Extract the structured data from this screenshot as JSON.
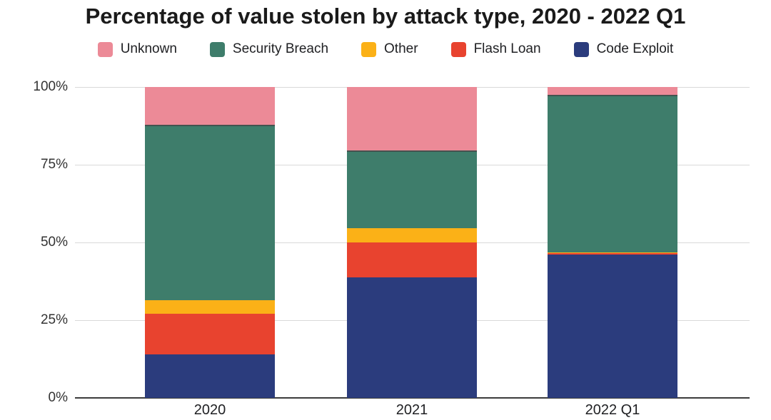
{
  "chart_data": {
    "type": "bar",
    "stacked": true,
    "title": "Percentage of value stolen by attack type, 2020 - 2022 Q1",
    "categories": [
      "2020",
      "2021",
      "2022 Q1"
    ],
    "series": [
      {
        "name": "Unknown",
        "color": "#EC8A97",
        "values": [
          12.2,
          20.5,
          2.5
        ]
      },
      {
        "name": "Security Breach",
        "color": "#3E7D6B",
        "values": [
          56.4,
          25.0,
          50.7
        ]
      },
      {
        "name": "Other",
        "color": "#FBB117",
        "values": [
          4.3,
          4.5,
          0.2
        ]
      },
      {
        "name": "Flash Loan",
        "color": "#E8432F",
        "values": [
          13.2,
          11.3,
          0.6
        ]
      },
      {
        "name": "Code Exploit",
        "color": "#2B3C7D",
        "values": [
          13.9,
          38.7,
          46.0
        ]
      }
    ],
    "y_ticks": [
      0,
      25,
      50,
      75,
      100
    ],
    "y_tick_labels": [
      "0%",
      "25%",
      "50%",
      "75%",
      "100%"
    ],
    "ylim": [
      0,
      100
    ],
    "grid": true,
    "legend_position": "top",
    "legend_order": [
      "Unknown",
      "Security Breach",
      "Other",
      "Flash Loan",
      "Code Exploit"
    ],
    "colors": {
      "grid": "#D9D9D9",
      "axis": "#3C3C3C",
      "text": "#1F1F1F",
      "background": "#FFFFFF"
    }
  }
}
